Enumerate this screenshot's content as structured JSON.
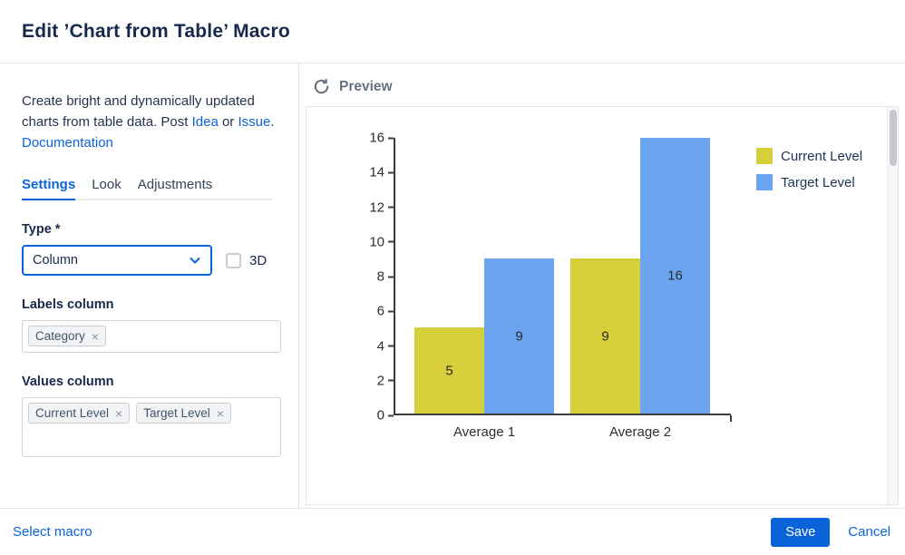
{
  "header": {
    "title": "Edit ’Chart from Table’ Macro"
  },
  "description": {
    "text_1": "Create bright and dynamically updated charts from table data. Post ",
    "link_idea": "Idea",
    "text_2": " or ",
    "link_issue": "Issue",
    "text_3": ". ",
    "link_documentation": "Documentation"
  },
  "tabs": [
    "Settings",
    "Look",
    "Adjustments"
  ],
  "fields": {
    "type_label": "Type *",
    "type_value": "Column",
    "checkbox_3d": "3D",
    "labels_column_label": "Labels column",
    "labels_chips": [
      "Category"
    ],
    "values_column_label": "Values column",
    "values_chips": [
      "Current Level",
      "Target Level"
    ]
  },
  "icons": {
    "chip_remove": "×"
  },
  "preview": {
    "title": "Preview"
  },
  "footer": {
    "select_macro": "Select macro",
    "save": "Save",
    "cancel": "Cancel"
  },
  "colors": {
    "accent_blue": "#0b63da",
    "bar_yellow": "#d6ce3b",
    "bar_blue": "#6ba5f2"
  },
  "chart_data": {
    "type": "bar",
    "categories": [
      "Average 1",
      "Average 2"
    ],
    "series": [
      {
        "name": "Current Level",
        "color": "#d6ce3b",
        "values": [
          5,
          9
        ]
      },
      {
        "name": "Target Level",
        "color": "#6ba5f2",
        "values": [
          9,
          16
        ]
      }
    ],
    "title": "",
    "xlabel": "",
    "ylabel": "",
    "ylim": [
      0,
      16
    ],
    "ytick_step": 2,
    "grid": false,
    "data_labels": true,
    "legend_position": "top-right"
  }
}
